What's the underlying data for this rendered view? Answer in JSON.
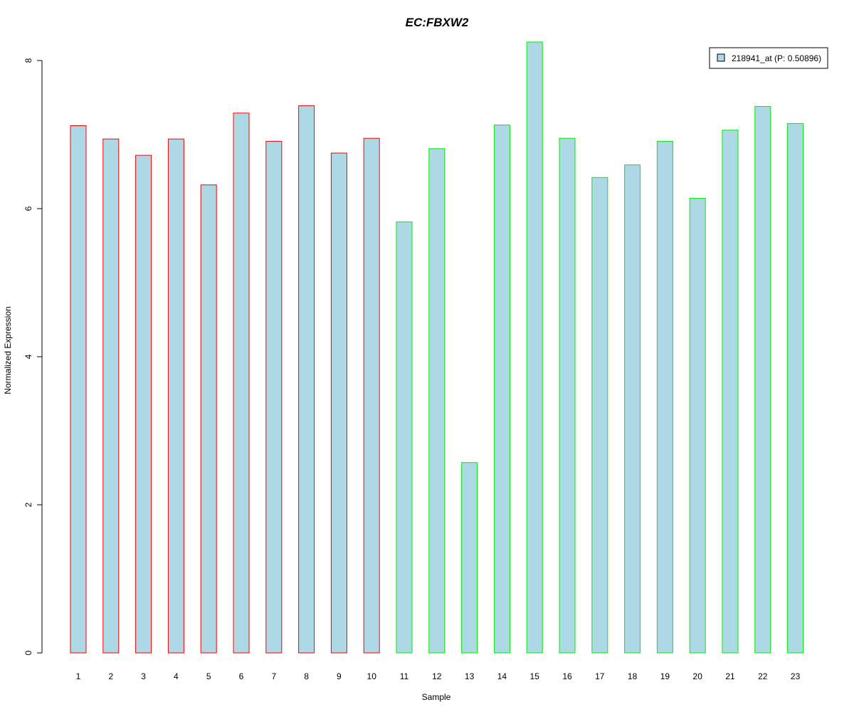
{
  "chart_data": {
    "type": "bar",
    "title": "EC:FBXW2",
    "xlabel": "Sample",
    "ylabel": "Normalized Expression",
    "categories": [
      "1",
      "2",
      "3",
      "4",
      "5",
      "6",
      "7",
      "8",
      "9",
      "10",
      "11",
      "12",
      "13",
      "14",
      "15",
      "16",
      "17",
      "18",
      "19",
      "20",
      "21",
      "22",
      "23"
    ],
    "series": [
      {
        "name": "218941_at (P: 0.50896)",
        "values": [
          7.12,
          6.94,
          6.72,
          6.94,
          6.32,
          7.29,
          6.91,
          7.39,
          6.75,
          6.95,
          5.82,
          6.81,
          2.57,
          7.13,
          8.25,
          6.95,
          6.42,
          6.59,
          6.91,
          6.14,
          7.06,
          7.38,
          7.15
        ]
      }
    ],
    "bar_outline_colors": [
      "#ff0000",
      "#ff0000",
      "#ff0000",
      "#ff0000",
      "#ff0000",
      "#ff0000",
      "#ff0000",
      "#ff0000",
      "#ff0000",
      "#ff0000",
      "#00ee00",
      "#00ee00",
      "#00ee00",
      "#00ee00",
      "#00ee00",
      "#00ee00",
      "#00ee00",
      "#00ee00",
      "#00ee00",
      "#00ee00",
      "#00ee00",
      "#00ee00",
      "#00ee00"
    ],
    "yticks": [
      0,
      2,
      4,
      6,
      8
    ],
    "ylim": [
      0,
      8.25
    ],
    "grid": false,
    "legend_position": "top-right",
    "colors": {
      "bar_fill": "#add8e6",
      "title": "#0000cc",
      "axis": "#000000"
    }
  }
}
